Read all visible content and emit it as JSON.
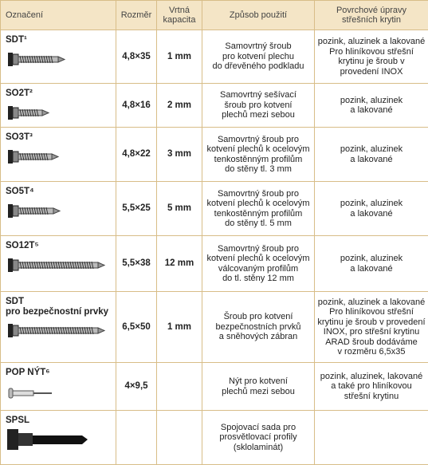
{
  "table": {
    "header": [
      "Označení",
      "Rozměr",
      [
        "Vrtná",
        "kapacita"
      ],
      "Způsob použití",
      [
        "Povrchové úpravy",
        "střešních krytin"
      ]
    ],
    "rows": [
      {
        "name": [
          "SDT¹"
        ],
        "size": "4,8×35",
        "capacity": "1 mm",
        "usage": [
          "Samovrtný šroub",
          "pro kotvení plechu",
          "do dřevěného podkladu"
        ],
        "finish": [
          "pozink, aluzinek a lakované",
          "Pro hliníkovou střešní",
          "krytinu je šroub v",
          "provedení INOX"
        ]
      },
      {
        "name": [
          "SO2T²"
        ],
        "size": "4,8×16",
        "capacity": "2 mm",
        "usage": [
          "Samovrtný sešívací",
          "šroub pro kotvení",
          "plechů mezi sebou"
        ],
        "finish": [
          "pozink, aluzinek",
          "a lakované"
        ]
      },
      {
        "name": [
          "SO3T³"
        ],
        "size": "4,8×22",
        "capacity": "3 mm",
        "usage": [
          "Samovrtný šroub pro",
          "kotvení plechů k ocelovým",
          "tenkostěnným profilům",
          "do stěny tl. 3 mm"
        ],
        "finish": [
          "pozink, aluzinek",
          "a lakované"
        ]
      },
      {
        "name": [
          "SO5T⁴"
        ],
        "size": "5,5×25",
        "capacity": "5 mm",
        "usage": [
          "Samovrtný šroub pro",
          "kotvení plechů k ocelovým",
          "tenkostěnným profilům",
          "do stěny tl. 5 mm"
        ],
        "finish": [
          "pozink, aluzinek",
          "a lakované"
        ]
      },
      {
        "name": [
          "SO12T⁵"
        ],
        "size": "5,5×38",
        "capacity": "12 mm",
        "usage": [
          "Samovrtný šroub pro",
          "kotvení plechů k ocelovým",
          "válcovaným profilům",
          "do tl. stěny 12 mm"
        ],
        "finish": [
          "pozink, aluzinek",
          "a lakované"
        ]
      },
      {
        "name": [
          "SDT",
          "pro bezpečnostní prvky"
        ],
        "size": "6,5×50",
        "capacity": "1 mm",
        "usage": [
          "Šroub pro kotvení",
          "bezpečnostních prvků",
          "a sněhových zábran"
        ],
        "finish": [
          "pozink, aluzinek a lakované",
          "Pro hliníkovou střešní",
          "krytinu je šroub v provedení",
          "INOX, pro střešní krytinu",
          "ARAD šroub dodáváme",
          "v rozměru 6,5x35"
        ]
      },
      {
        "name": [
          "POP NÝT⁶"
        ],
        "size": "4×9,5",
        "capacity": null,
        "usage": [
          "Nýt pro kotvení",
          "plechů mezi sebou"
        ],
        "finish": [
          "pozink, aluzinek, lakované",
          "a také pro hliníkovou",
          "střešní krytinu"
        ]
      },
      {
        "name": [
          "SPSL"
        ],
        "size": null,
        "capacity": null,
        "usage": [
          "Spojovací sada pro",
          "prosvětlovací profily",
          "(sklolaminát)"
        ],
        "finish": null
      }
    ]
  }
}
